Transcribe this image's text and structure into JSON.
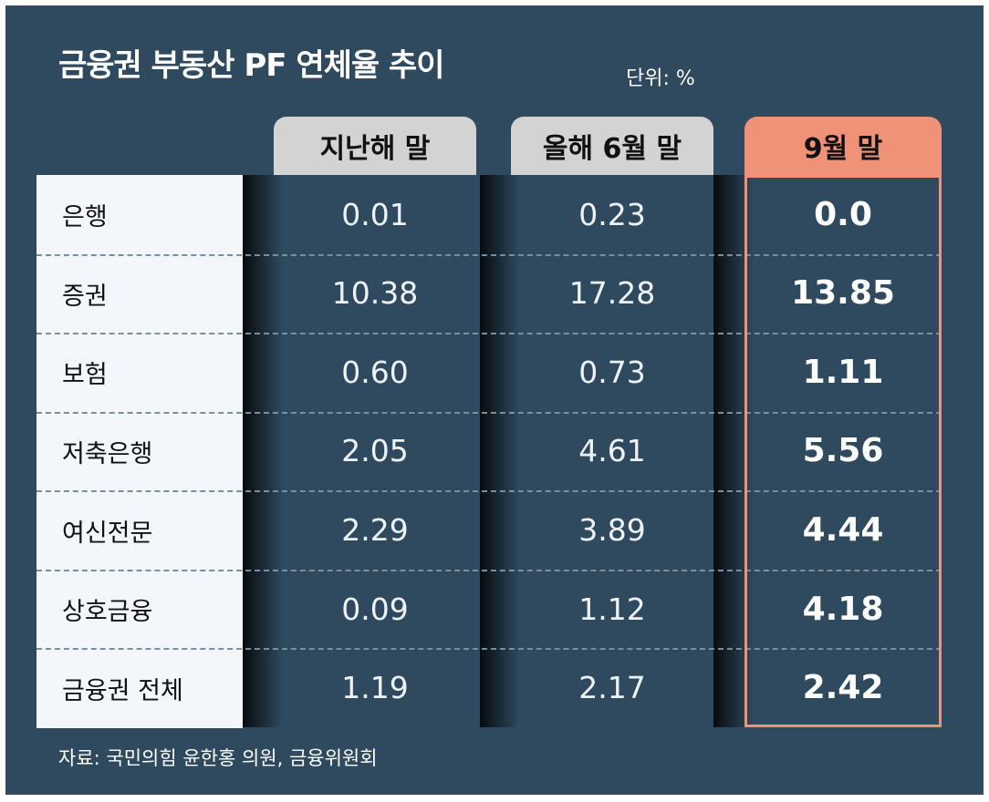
{
  "header": {
    "title": "금융권 부동산 PF 연체율 추이",
    "unit": "단위: %"
  },
  "table": {
    "columns": [
      "지난해 말",
      "올해 6월 말",
      "9월 말"
    ],
    "rows": [
      [
        "은행",
        "0.01",
        "0.23",
        "0.0"
      ],
      [
        "증권",
        "10.38",
        "17.28",
        "13.85"
      ],
      [
        "보험",
        "0.60",
        "0.73",
        "1.11"
      ],
      [
        "저축은행",
        "2.05",
        "4.61",
        "5.56"
      ],
      [
        "여신전문",
        "2.29",
        "3.89",
        "4.44"
      ],
      [
        "상호금융",
        "0.09",
        "1.12",
        "4.18"
      ],
      [
        "금융권 전체",
        "1.19",
        "2.17",
        "2.42"
      ]
    ]
  },
  "footer": {
    "source": "자료: 국민의힘 윤한홍 의원, 금융위원회"
  }
}
